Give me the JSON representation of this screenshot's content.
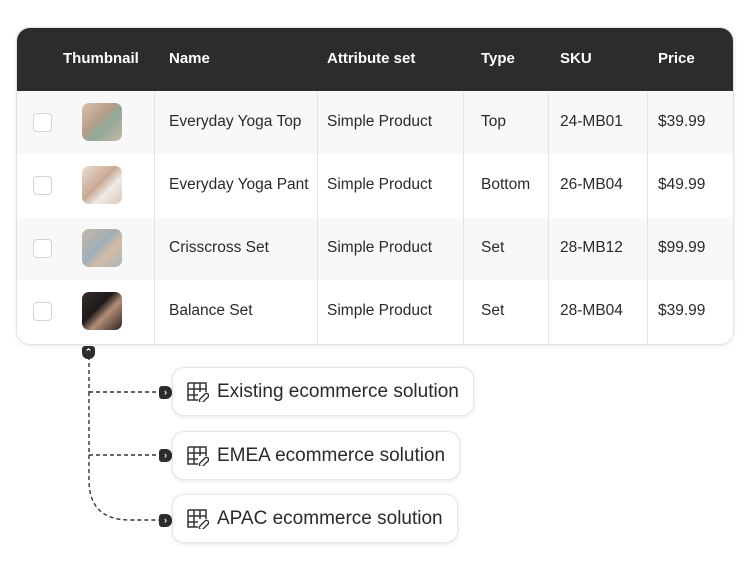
{
  "table": {
    "columns": [
      "Thumbnail",
      "Name",
      "Attribute set",
      "Type",
      "SKU",
      "Price"
    ],
    "rows": [
      {
        "name": "Everyday Yoga Top",
        "attribute_set": "Simple Product",
        "type": "Top",
        "sku": "24-MB01",
        "price": "$39.99"
      },
      {
        "name": "Everyday Yoga Pant",
        "attribute_set": "Simple Product",
        "type": "Bottom",
        "sku": "26-MB04",
        "price": "$49.99"
      },
      {
        "name": "Crisscross Set",
        "attribute_set": "Simple Product",
        "type": "Set",
        "sku": "28-MB12",
        "price": "$99.99"
      },
      {
        "name": "Balance Set",
        "attribute_set": "Simple Product",
        "type": "Set",
        "sku": "28-MB04",
        "price": "$39.99"
      }
    ]
  },
  "solutions": [
    {
      "label": "Existing ecommerce solution",
      "icon": "table-link-icon"
    },
    {
      "label": "EMEA ecommerce solution",
      "icon": "table-link-icon"
    },
    {
      "label": "APAC ecommerce solution",
      "icon": "table-link-icon"
    }
  ],
  "colors": {
    "header_bg": "#2c2c2c",
    "row_alt": "#f8f8f8"
  }
}
